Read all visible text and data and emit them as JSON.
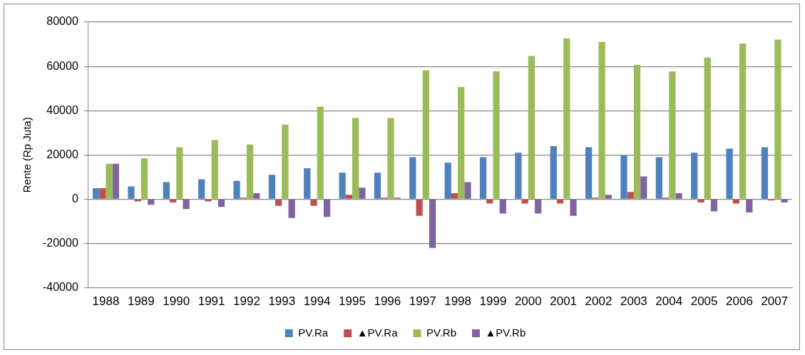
{
  "chart_data": {
    "type": "bar",
    "ylabel": "Rente (Rp Juta)",
    "categories": [
      "1988",
      "1989",
      "1990",
      "1991",
      "1992",
      "1993",
      "1994",
      "1995",
      "1996",
      "1997",
      "1998",
      "1999",
      "2000",
      "2001",
      "2002",
      "2003",
      "2004",
      "2005",
      "2006",
      "2007"
    ],
    "series": [
      {
        "name": "PV.Ra",
        "color": "#4f81bd",
        "values": [
          5000,
          5800,
          7700,
          9000,
          8300,
          11000,
          14000,
          12000,
          12000,
          19000,
          16500,
          19000,
          21000,
          24000,
          23500,
          19700,
          19000,
          21000,
          22800,
          23500
        ]
      },
      {
        "name": "▲PV.Ra",
        "color": "#c0504d",
        "values": [
          5000,
          -1000,
          -1500,
          -1000,
          700,
          -3000,
          -3000,
          2000,
          700,
          -7500,
          2700,
          -2000,
          -2000,
          -2000,
          700,
          3300,
          700,
          -1500,
          -2000,
          -600
        ]
      },
      {
        "name": "PV.Rb",
        "color": "#9bbb59",
        "values": [
          16000,
          18500,
          23500,
          26700,
          24700,
          33700,
          41800,
          36700,
          36700,
          58300,
          50700,
          57800,
          64700,
          72700,
          71000,
          60700,
          57700,
          64000,
          70300,
          72100
        ]
      },
      {
        "name": "▲PV.Rb",
        "color": "#8064a2",
        "values": [
          16000,
          -2500,
          -4500,
          -3500,
          2700,
          -8500,
          -8000,
          5200,
          700,
          -22000,
          7700,
          -6500,
          -6500,
          -7500,
          2000,
          10300,
          2700,
          -5500,
          -6000,
          -1500
        ]
      }
    ],
    "ylim": [
      -40000,
      80000
    ],
    "yticks": [
      -40000,
      -20000,
      0,
      20000,
      40000,
      60000,
      80000
    ],
    "grid": "y",
    "legend": "bottom"
  }
}
